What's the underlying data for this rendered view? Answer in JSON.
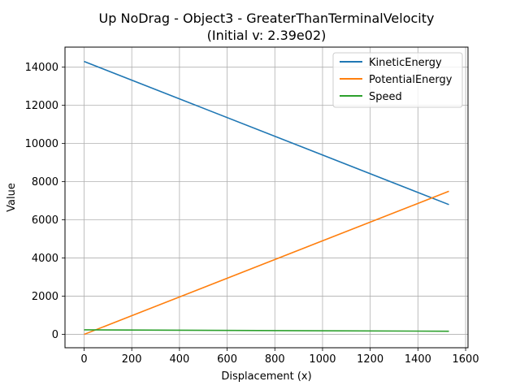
{
  "chart_data": {
    "type": "line",
    "title_line1": "Up NoDrag - Object3 - GreaterThanTerminalVelocity",
    "title_line2": "(Initial v: 2.39e02)",
    "xlabel": "Displacement (x)",
    "ylabel": "Value",
    "xlim": [
      -80,
      1610
    ],
    "ylim": [
      -700,
      15050
    ],
    "xticks": [
      0,
      200,
      400,
      600,
      800,
      1000,
      1200,
      1400,
      1600
    ],
    "yticks": [
      0,
      2000,
      4000,
      6000,
      8000,
      10000,
      12000,
      14000
    ],
    "grid": true,
    "legend_position": "top-right",
    "series": [
      {
        "name": "KineticEnergy",
        "color": "#1f77b4",
        "x": [
          0,
          1530
        ],
        "y": [
          14300,
          6800
        ]
      },
      {
        "name": "PotentialEnergy",
        "color": "#ff7f0e",
        "x": [
          0,
          1530
        ],
        "y": [
          0,
          7500
        ]
      },
      {
        "name": "Speed",
        "color": "#2ca02c",
        "x": [
          0,
          1530
        ],
        "y": [
          239,
          165
        ]
      }
    ]
  }
}
